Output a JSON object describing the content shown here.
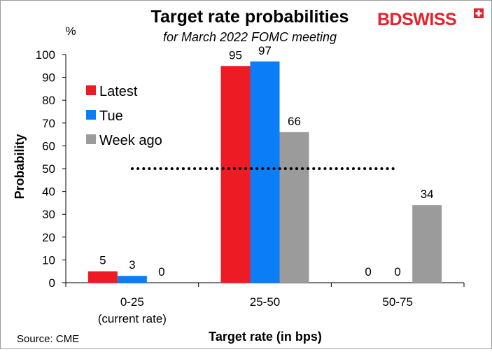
{
  "brand": {
    "prefix": "BD",
    "suffix": "SWISS",
    "color": "#e3222b"
  },
  "source": "Source: CME",
  "chart_data": {
    "type": "bar",
    "title": "Target rate probabilities",
    "subtitle": "for March 2022 FOMC meeting",
    "unit_label": "%",
    "xlabel": "Target rate (in bps)",
    "ylabel": "Probability",
    "ylim": [
      0,
      100
    ],
    "yticks": [
      0,
      10,
      20,
      30,
      40,
      50,
      60,
      70,
      80,
      90,
      100
    ],
    "categories": [
      [
        "0-25",
        "(current rate)"
      ],
      [
        "25-50"
      ],
      [
        "50-75"
      ]
    ],
    "series": [
      {
        "name": "Latest",
        "color": "#ed1c24",
        "values": [
          5,
          95,
          0
        ]
      },
      {
        "name": "Tue",
        "color": "#0a7df7",
        "values": [
          3,
          97,
          0
        ]
      },
      {
        "name": "Week ago",
        "color": "#9b9b9b",
        "values": [
          0,
          66,
          34
        ]
      }
    ],
    "reference_line": {
      "value": 50,
      "style": "dotted",
      "color": "#000000"
    },
    "legend_position": "left",
    "grid": false
  }
}
